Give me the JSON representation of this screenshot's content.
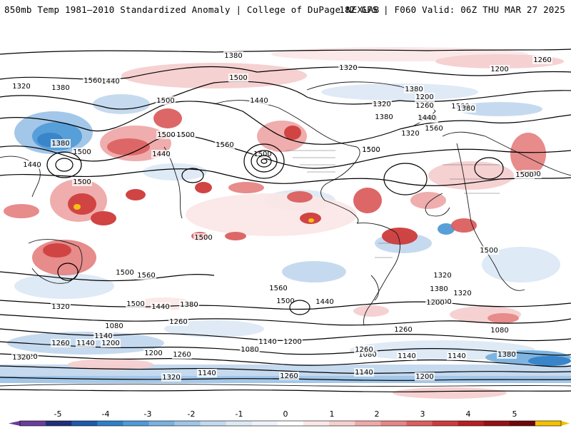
{
  "header": {
    "left_title": "850mb Temp 1981–2010 Standardized Anomaly | College of DuPage NEXLAB",
    "right_title": "18Z GFS | F060 Valid: 06Z THU MAR 27 2025"
  },
  "colors": {
    "background": "#ffffff",
    "coastline": "#1a1a1a",
    "border": "#666666",
    "contour": "#000000",
    "scale": [
      {
        "value": -5,
        "color": "#6a3d9a"
      },
      {
        "value": -4.5,
        "color": "#1f2f7a"
      },
      {
        "value": -4,
        "color": "#1e5aa8"
      },
      {
        "value": -3.5,
        "color": "#2f7fc8"
      },
      {
        "value": -3,
        "color": "#4f9ad8"
      },
      {
        "value": -2.5,
        "color": "#79b1e0"
      },
      {
        "value": -2,
        "color": "#9fc5e8"
      },
      {
        "value": -1.5,
        "color": "#c3d9ef"
      },
      {
        "value": -1,
        "color": "#dde9f5"
      },
      {
        "value": -0.5,
        "color": "#eef3fa"
      },
      {
        "value": 0,
        "color": "#ffffff"
      },
      {
        "value": 0.5,
        "color": "#fbe7e7"
      },
      {
        "value": 1,
        "color": "#f6cfcf"
      },
      {
        "value": 1.5,
        "color": "#efa9a9"
      },
      {
        "value": 2,
        "color": "#e68585"
      },
      {
        "value": 2.5,
        "color": "#dc5f5f"
      },
      {
        "value": 3,
        "color": "#cf3b3b"
      },
      {
        "value": 3.5,
        "color": "#b81e22"
      },
      {
        "value": 4,
        "color": "#961015"
      },
      {
        "value": 4.5,
        "color": "#6f060a"
      },
      {
        "value": 5,
        "color": "#f5c000"
      }
    ]
  },
  "colorbar": {
    "ticks": [
      "-5",
      "-4",
      "-3",
      "-2",
      "-1",
      "0",
      "1",
      "2",
      "3",
      "4",
      "5"
    ]
  },
  "contour_labels": [
    "1320",
    "1380",
    "1440",
    "1500",
    "1380",
    "1440",
    "1500",
    "1320",
    "1380",
    "1260",
    "1200",
    "1320",
    "1380",
    "1440",
    "1500",
    "1500",
    "1560",
    "1440",
    "1500",
    "1500",
    "1440",
    "1380",
    "1500",
    "1560",
    "1500",
    "1200",
    "1260",
    "1380",
    "1320",
    "1440",
    "1560",
    "1500",
    "1500",
    "1500",
    "1500",
    "1500",
    "1500",
    "1560",
    "1500",
    "1560",
    "1500",
    "1440",
    "1380",
    "1320",
    "1500",
    "1440",
    "1380",
    "1320",
    "1200",
    "1320",
    "1200",
    "1260",
    "1140",
    "1260",
    "1140",
    "1200",
    "1080",
    "1320",
    "1260",
    "1140",
    "1080",
    "1080",
    "1140",
    "1200",
    "1260",
    "1140",
    "1320",
    "1380",
    "1080",
    "1320",
    "1140",
    "1200",
    "1260",
    "1140",
    "1200",
    "1260"
  ]
}
